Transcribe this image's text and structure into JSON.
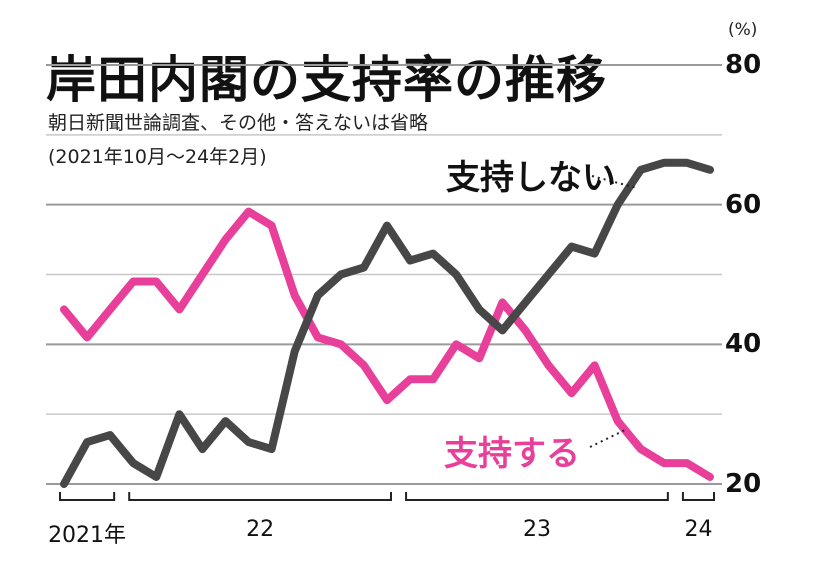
{
  "title": "岸田内閣の支持率の推移",
  "subtitle": "朝日新聞世論調査、その他・答えないは省略",
  "period_note": "(2021年10月～24年2月)",
  "unit": "(%)",
  "colors": {
    "support": "#e8409a",
    "nonsupport": "#474747",
    "grid": "#c8c8c8"
  },
  "chart_data": {
    "type": "line",
    "ylim": [
      20,
      80
    ],
    "yticks": [
      20,
      40,
      60,
      80
    ],
    "x": [
      "2021-10",
      "2021-11",
      "2021-12",
      "2022-01",
      "2022-02",
      "2022-03",
      "2022-04",
      "2022-05",
      "2022-06",
      "2022-07",
      "2022-08",
      "2022-09",
      "2022-10",
      "2022-11",
      "2022-12",
      "2023-01",
      "2023-02",
      "2023-03",
      "2023-04",
      "2023-05",
      "2023-06",
      "2023-07",
      "2023-08",
      "2023-09",
      "2023-10",
      "2023-11",
      "2023-12",
      "2024-01",
      "2024-02"
    ],
    "x_period_labels": [
      {
        "label": "2021年",
        "start": 0,
        "end": 2
      },
      {
        "label": "22",
        "start": 3,
        "end": 14
      },
      {
        "label": "23",
        "start": 15,
        "end": 26
      },
      {
        "label": "24",
        "start": 27,
        "end": 28
      }
    ],
    "series": [
      {
        "name": "支持する",
        "key": "support",
        "values": [
          45,
          41,
          45,
          49,
          49,
          45,
          50,
          55,
          59,
          57,
          47,
          41,
          40,
          37,
          32,
          35,
          35,
          40,
          38,
          46,
          42,
          37,
          33,
          37,
          29,
          25,
          23,
          23,
          21
        ]
      },
      {
        "name": "支持しない",
        "key": "nonsupport",
        "values": [
          20,
          26,
          27,
          23,
          21,
          30,
          25,
          29,
          26,
          25,
          39,
          47,
          50,
          51,
          57,
          52,
          53,
          50,
          45,
          42,
          46,
          50,
          54,
          53,
          60,
          65,
          66,
          66,
          65
        ]
      }
    ]
  }
}
